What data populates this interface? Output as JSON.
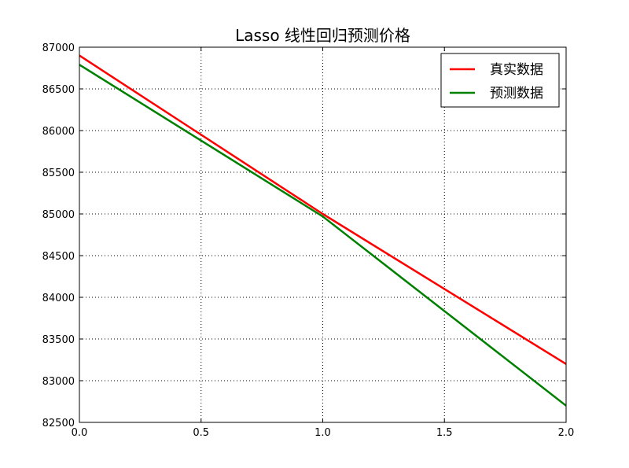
{
  "chart_data": {
    "type": "line",
    "title": "Lasso 线性回归预测价格",
    "xlabel": "",
    "ylabel": "",
    "xlim": [
      0.0,
      2.0
    ],
    "ylim": [
      82500,
      87000
    ],
    "xticks": [
      "0.0",
      "0.5",
      "1.0",
      "1.5",
      "2.0"
    ],
    "yticks": [
      "82500",
      "83000",
      "83500",
      "84000",
      "84500",
      "85000",
      "85500",
      "86000",
      "86500",
      "87000"
    ],
    "grid": true,
    "legend_position": "top-right",
    "series": [
      {
        "name": "真实数据",
        "color": "#ff0000",
        "x": [
          0,
          1,
          2
        ],
        "y": [
          86900,
          85000,
          83200
        ]
      },
      {
        "name": "预测数据",
        "color": "#008000",
        "x": [
          0,
          1,
          2
        ],
        "y": [
          86790,
          84970,
          82700
        ]
      }
    ]
  }
}
